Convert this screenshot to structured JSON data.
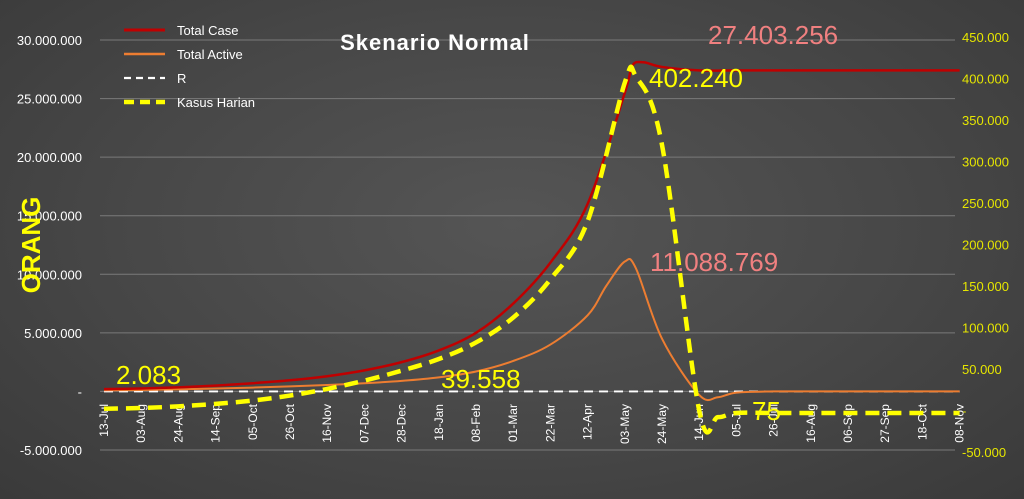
{
  "chart_data": {
    "type": "line",
    "title": "Skenario Normal",
    "ylabel": "ORANG",
    "y_left_ticks": [
      "30.000.000",
      "25.000.000",
      "20.000.000",
      "15.000.000",
      "10.000.000",
      "5.000.000",
      "-",
      "-5.000.000"
    ],
    "y_left_range": [
      -5000000,
      30000000
    ],
    "y_right_ticks": [
      "450.000",
      "400.000",
      "350.000",
      "300.000",
      "250.000",
      "200.000",
      "150.000",
      "100.000",
      "50.000",
      "-",
      "-50.000"
    ],
    "y_right_range": [
      -50000,
      450000
    ],
    "categories": [
      "13-Jul",
      "03-Aug",
      "24-Aug",
      "14-Sep",
      "05-Oct",
      "26-Oct",
      "16-Nov",
      "07-Dec",
      "28-Dec",
      "18-Jan",
      "08-Feb",
      "01-Mar",
      "22-Mar",
      "12-Apr",
      "03-May",
      "24-May",
      "14-Jun",
      "05-Jul",
      "26-Jul",
      "16-Aug",
      "06-Sep",
      "27-Sep",
      "18-Oct",
      "08-Nov"
    ],
    "series": [
      {
        "name": "Total Case",
        "axis": "left",
        "color": "#c00000",
        "dash": "solid",
        "x": [
          0,
          1,
          2,
          3,
          4,
          5,
          6,
          7,
          8,
          9,
          10,
          11,
          12,
          13,
          14,
          14.2,
          14.5,
          15,
          16,
          17,
          18,
          19,
          20,
          21,
          22,
          23
        ],
        "values": [
          200000,
          250000,
          350000,
          500000,
          700000,
          950000,
          1300000,
          1800000,
          2500000,
          3500000,
          5000000,
          7500000,
          11000000,
          16000000,
          25500000,
          27800000,
          28100000,
          27700000,
          27403256,
          27403256,
          27403256,
          27403256,
          27403256,
          27403256,
          27403256,
          27403256
        ]
      },
      {
        "name": "Total Active",
        "axis": "left",
        "color": "#ed7d31",
        "dash": "solid",
        "x": [
          0,
          1,
          2,
          3,
          4,
          5,
          6,
          7,
          8,
          9,
          10,
          11,
          12,
          13,
          13.5,
          14,
          14.3,
          15,
          16,
          16.5,
          17,
          18,
          19,
          20,
          21,
          22,
          23
        ],
        "values": [
          100000,
          120000,
          180000,
          250000,
          330000,
          430000,
          550000,
          700000,
          900000,
          1200000,
          1700000,
          2600000,
          4000000,
          6500000,
          9000000,
          11088769,
          10500000,
          4500000,
          -300000,
          -500000,
          -100000,
          0,
          0,
          0,
          0,
          0,
          0
        ]
      },
      {
        "name": "R",
        "axis": "left",
        "color": "#ffffff",
        "dash": "dashed",
        "x": [
          0,
          23
        ],
        "values": [
          0,
          0
        ]
      },
      {
        "name": "Kasus Harian",
        "axis": "right",
        "color": "#ffff00",
        "dash": "dashed",
        "x": [
          0,
          1,
          2,
          3,
          4,
          5,
          6,
          7,
          8,
          9,
          10,
          11,
          12,
          13,
          14,
          14.3,
          15,
          16,
          16.5,
          17,
          18,
          19,
          20,
          21,
          22,
          23
        ],
        "values": [
          2083,
          3000,
          5000,
          8000,
          12000,
          18000,
          26000,
          36000,
          48000,
          62000,
          82000,
          112000,
          158000,
          228000,
          395000,
          402240,
          320000,
          0,
          -8000,
          -3000,
          -3000,
          -3000,
          -3000,
          -3000,
          -3000,
          -3000
        ]
      }
    ],
    "annotations": [
      {
        "text": "27.403.256",
        "color": "#f08080"
      },
      {
        "text": "402.240",
        "color": "#ffff00"
      },
      {
        "text": "11.088.769",
        "color": "#f08080"
      },
      {
        "text": "2.083",
        "color": "#ffff00"
      },
      {
        "text": "39.558",
        "color": "#ffff00"
      },
      {
        "text": "75",
        "color": "#ffff00"
      }
    ],
    "legend_position": "top-left",
    "grid": true
  }
}
